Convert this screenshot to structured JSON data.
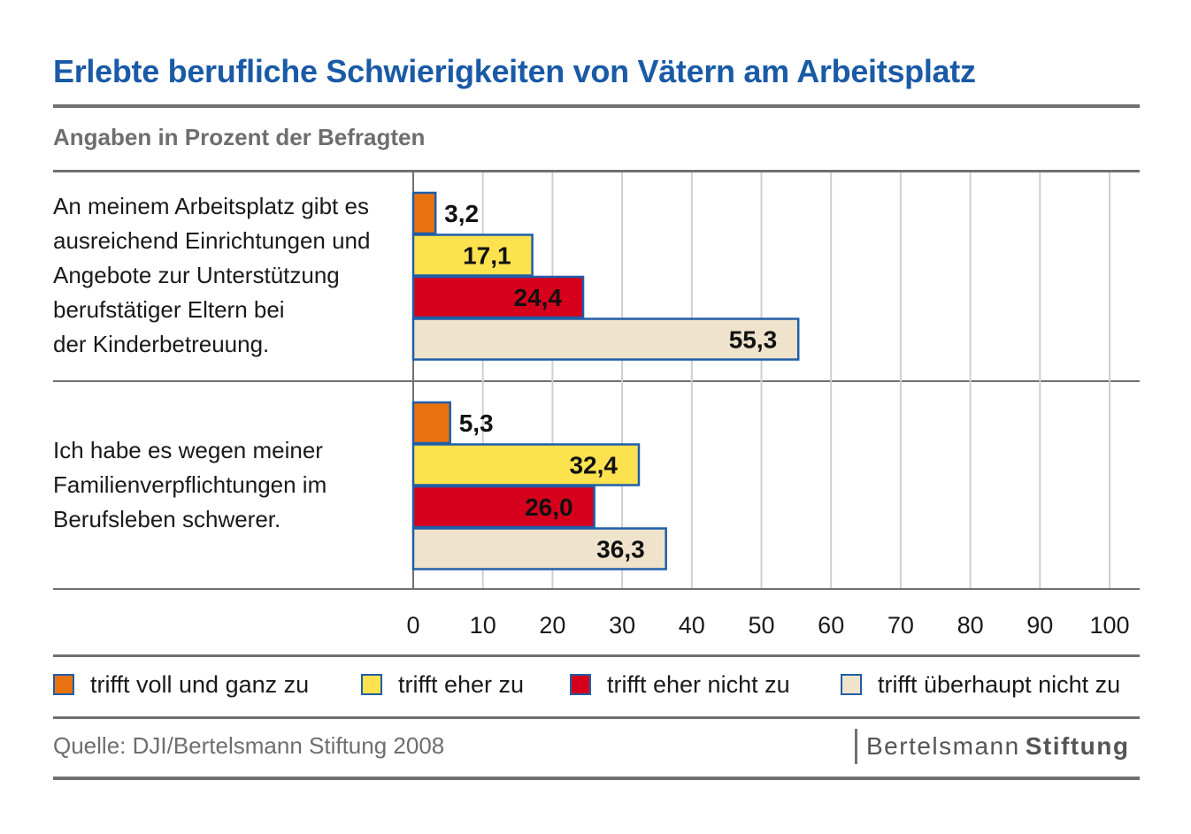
{
  "title": "Erlebte berufliche Schwierigkeiten von Vätern am Arbeitsplatz",
  "subtitle": "Angaben in Prozent der Befragten",
  "source": "Quelle: DJI/Bertelsmann Stiftung 2008",
  "logo": {
    "part1": "Bertelsmann",
    "part2": "Stiftung"
  },
  "chart_data": {
    "type": "bar",
    "orientation": "horizontal",
    "categories": [
      "An meinem Arbeitsplatz gibt es\nausreichend Einrichtungen und\nAngebote zur Unterstützung\nberufstätiger Eltern bei\nder Kinderbetreuung.",
      "Ich habe es wegen meiner\nFamilienverpflichtungen im\nBerufsleben schwerer."
    ],
    "series": [
      {
        "name": "trifft voll und ganz zu",
        "color": "#e8720e",
        "values": [
          3.2,
          5.3
        ],
        "labels": [
          "3,2",
          "5,3"
        ]
      },
      {
        "name": "trifft eher zu",
        "color": "#fde24f",
        "values": [
          17.1,
          32.4
        ],
        "labels": [
          "17,1",
          "32,4"
        ]
      },
      {
        "name": "trifft eher nicht zu",
        "color": "#d6001c",
        "values": [
          24.4,
          26.0
        ],
        "labels": [
          "24,4",
          "26,0"
        ]
      },
      {
        "name": "trifft überhaupt nicht zu",
        "color": "#efe3cc",
        "values": [
          55.3,
          36.3
        ],
        "labels": [
          "55,3",
          "36,3"
        ]
      }
    ],
    "xlim": [
      0,
      100
    ],
    "xticks": [
      "0",
      "10",
      "20",
      "30",
      "40",
      "50",
      "60",
      "70",
      "80",
      "90",
      "100"
    ],
    "grid": true,
    "legend": "bottom",
    "bar_border_color": "#1f5ea8"
  }
}
